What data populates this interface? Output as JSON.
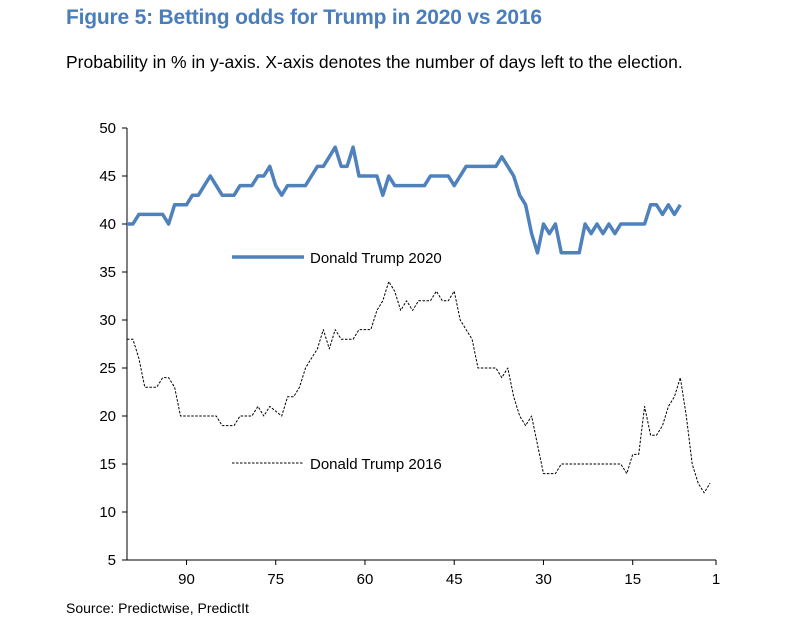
{
  "title": "Figure 5: Betting odds for Trump in 2020 vs 2016",
  "subtitle": "Probability in % in y-axis. X-axis denotes the number of days left to the election.",
  "source": "Source: Predictwise, PredictIt",
  "chart_data": {
    "type": "line",
    "title": "Figure 5: Betting odds for Trump in 2020 vs 2016",
    "xlabel": "",
    "ylabel": "",
    "x_direction": "descending",
    "xlim": [
      100,
      1
    ],
    "ylim": [
      5,
      50
    ],
    "x_ticks": [
      90,
      75,
      60,
      45,
      30,
      15,
      1
    ],
    "y_ticks": [
      5,
      10,
      15,
      20,
      25,
      30,
      35,
      40,
      45,
      50
    ],
    "grid": false,
    "legend": "inline labels",
    "series": [
      {
        "name": "Donald Trump 2020",
        "color": "#4f81bd",
        "style": "solid",
        "points": [
          [
            100,
            40
          ],
          [
            99,
            40
          ],
          [
            98,
            41
          ],
          [
            95,
            41
          ],
          [
            94,
            41
          ],
          [
            93,
            40
          ],
          [
            92,
            42
          ],
          [
            90,
            42
          ],
          [
            89,
            43
          ],
          [
            88,
            43
          ],
          [
            87,
            44
          ],
          [
            86,
            45
          ],
          [
            85,
            44
          ],
          [
            84,
            43
          ],
          [
            82,
            43
          ],
          [
            81,
            44
          ],
          [
            79,
            44
          ],
          [
            78,
            45
          ],
          [
            77,
            45
          ],
          [
            76,
            46
          ],
          [
            75,
            44
          ],
          [
            74,
            43
          ],
          [
            73,
            44
          ],
          [
            70,
            44
          ],
          [
            69,
            45
          ],
          [
            68,
            46
          ],
          [
            67,
            46
          ],
          [
            66,
            47
          ],
          [
            65,
            48
          ],
          [
            64,
            46
          ],
          [
            63,
            46
          ],
          [
            62,
            48
          ],
          [
            61,
            45
          ],
          [
            58,
            45
          ],
          [
            57,
            43
          ],
          [
            56,
            45
          ],
          [
            55,
            44
          ],
          [
            50,
            44
          ],
          [
            49,
            45
          ],
          [
            46,
            45
          ],
          [
            45,
            44
          ],
          [
            44,
            45
          ],
          [
            43,
            46
          ],
          [
            38,
            46
          ],
          [
            37,
            47
          ],
          [
            36,
            46
          ],
          [
            35,
            45
          ],
          [
            34,
            43
          ],
          [
            33,
            42
          ],
          [
            32,
            39
          ],
          [
            31,
            37
          ],
          [
            30,
            40
          ],
          [
            29,
            39
          ],
          [
            28,
            40
          ],
          [
            27,
            37
          ],
          [
            24,
            37
          ],
          [
            23,
            40
          ],
          [
            22,
            39
          ],
          [
            21,
            40
          ],
          [
            20,
            39
          ],
          [
            19,
            40
          ],
          [
            18,
            39
          ],
          [
            17,
            40
          ],
          [
            13,
            40
          ],
          [
            12,
            42
          ],
          [
            11,
            42
          ],
          [
            10,
            41
          ],
          [
            9,
            42
          ],
          [
            8,
            41
          ],
          [
            7,
            42
          ]
        ]
      },
      {
        "name": "Donald Trump 2016",
        "color": "#000000",
        "style": "dashed",
        "points": [
          [
            100,
            28
          ],
          [
            99,
            28
          ],
          [
            98,
            26
          ],
          [
            97,
            23
          ],
          [
            95,
            23
          ],
          [
            94,
            24
          ],
          [
            93,
            24
          ],
          [
            92,
            23
          ],
          [
            91,
            20
          ],
          [
            85,
            20
          ],
          [
            84,
            19
          ],
          [
            83,
            19
          ],
          [
            82,
            19
          ],
          [
            81,
            20
          ],
          [
            79,
            20
          ],
          [
            78,
            21
          ],
          [
            77,
            20
          ],
          [
            76,
            21
          ],
          [
            74,
            20
          ],
          [
            73,
            22
          ],
          [
            72,
            22
          ],
          [
            71,
            23
          ],
          [
            70,
            25
          ],
          [
            69,
            26
          ],
          [
            68,
            27
          ],
          [
            67,
            29
          ],
          [
            66,
            27
          ],
          [
            65,
            29
          ],
          [
            64,
            28
          ],
          [
            62,
            28
          ],
          [
            61,
            29
          ],
          [
            59,
            29
          ],
          [
            58,
            31
          ],
          [
            57,
            32
          ],
          [
            56,
            34
          ],
          [
            55,
            33
          ],
          [
            54,
            31
          ],
          [
            53,
            32
          ],
          [
            52,
            31
          ],
          [
            51,
            32
          ],
          [
            49,
            32
          ],
          [
            48,
            33
          ],
          [
            47,
            32
          ],
          [
            46,
            32
          ],
          [
            45,
            33
          ],
          [
            44,
            30
          ],
          [
            43,
            29
          ],
          [
            42,
            28
          ],
          [
            41,
            25
          ],
          [
            40,
            25
          ],
          [
            39,
            25
          ],
          [
            38,
            25
          ],
          [
            37,
            24
          ],
          [
            36,
            25
          ],
          [
            35,
            22
          ],
          [
            34,
            20
          ],
          [
            33,
            19
          ],
          [
            32,
            20
          ],
          [
            31,
            17
          ],
          [
            30,
            14
          ],
          [
            28,
            14
          ],
          [
            27,
            15
          ],
          [
            17,
            15
          ],
          [
            16,
            14
          ],
          [
            15,
            16
          ],
          [
            14,
            16
          ],
          [
            13,
            21
          ],
          [
            12,
            18
          ],
          [
            11,
            18
          ],
          [
            10,
            19
          ],
          [
            9,
            21
          ],
          [
            8,
            22
          ],
          [
            7,
            24
          ],
          [
            6,
            20
          ],
          [
            5,
            15
          ],
          [
            4,
            13
          ],
          [
            3,
            12
          ],
          [
            2,
            13
          ]
        ]
      }
    ]
  }
}
